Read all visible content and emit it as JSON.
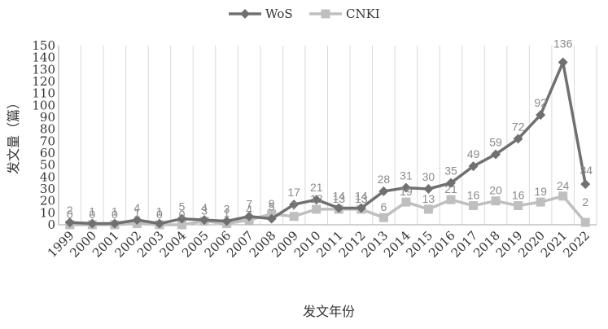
{
  "chart_data": {
    "type": "line",
    "categories": [
      "1999",
      "2000",
      "2001",
      "2002",
      "2003",
      "2004",
      "2005",
      "2006",
      "2007",
      "2008",
      "2009",
      "2010",
      "2011",
      "2012",
      "2013",
      "2014",
      "2015",
      "2016",
      "2017",
      "2018",
      "2019",
      "2020",
      "2021",
      "2022"
    ],
    "series": [
      {
        "name": "WoS",
        "color": "#707070",
        "marker": "diamond",
        "values": [
          2,
          1,
          1,
          4,
          1,
          5,
          4,
          3,
          7,
          5,
          17,
          21,
          14,
          14,
          28,
          31,
          30,
          35,
          49,
          59,
          72,
          92,
          136,
          34
        ]
      },
      {
        "name": "CNKI",
        "color": "#bfbfbf",
        "marker": "square",
        "values": [
          0,
          0,
          0,
          1,
          0,
          0,
          3,
          1,
          4,
          9,
          7,
          13,
          13,
          13,
          6,
          19,
          13,
          21,
          16,
          20,
          16,
          19,
          24,
          2
        ]
      }
    ],
    "ylabel": "发文量（篇）",
    "xlabel": "发文年份",
    "ylim": [
      0,
      150
    ],
    "ytick_step": 10,
    "grid": "vertical",
    "legend": "top-center"
  }
}
